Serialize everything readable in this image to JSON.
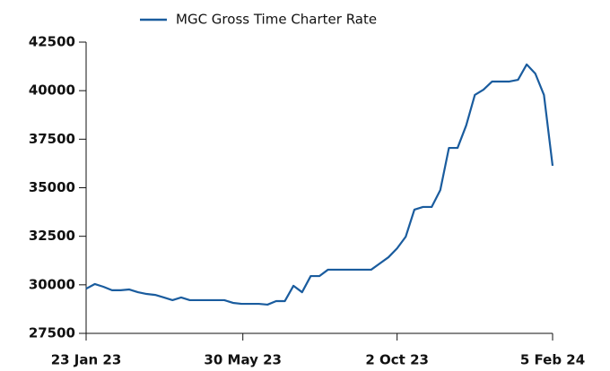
{
  "chart_data": {
    "type": "line",
    "x": [
      "2023-01-23",
      "2023-01-30",
      "2023-02-06",
      "2023-02-13",
      "2023-02-20",
      "2023-02-27",
      "2023-03-06",
      "2023-03-13",
      "2023-03-20",
      "2023-03-27",
      "2023-04-03",
      "2023-04-10",
      "2023-04-17",
      "2023-04-24",
      "2023-05-01",
      "2023-05-08",
      "2023-05-15",
      "2023-05-22",
      "2023-05-29",
      "2023-06-05",
      "2023-06-12",
      "2023-06-19",
      "2023-06-26",
      "2023-07-03",
      "2023-07-10",
      "2023-07-17",
      "2023-07-24",
      "2023-07-31",
      "2023-08-07",
      "2023-08-14",
      "2023-08-21",
      "2023-08-28",
      "2023-09-04",
      "2023-09-11",
      "2023-09-18",
      "2023-09-25",
      "2023-10-02",
      "2023-10-09",
      "2023-10-16",
      "2023-10-23",
      "2023-10-30",
      "2023-11-06",
      "2023-11-13",
      "2023-11-20",
      "2023-11-27",
      "2023-12-04",
      "2023-12-11",
      "2023-12-18",
      "2023-12-25",
      "2024-01-01",
      "2024-01-08",
      "2024-01-15",
      "2024-01-22",
      "2024-01-29",
      "2024-02-05"
    ],
    "series": [
      {
        "name": "MGC Gross Time Charter Rate",
        "color": "#1a5c9e",
        "values": [
          29800,
          30040,
          29900,
          29720,
          29720,
          29760,
          29620,
          29530,
          29480,
          29350,
          29210,
          29350,
          29210,
          29210,
          29210,
          29210,
          29210,
          29070,
          29020,
          29020,
          29020,
          28980,
          29160,
          29160,
          29950,
          29620,
          30450,
          30450,
          30780,
          30780,
          30780,
          30780,
          30780,
          30780,
          31100,
          31420,
          31880,
          32480,
          33870,
          34010,
          34010,
          34880,
          37050,
          37050,
          38210,
          39780,
          40050,
          40470,
          40470,
          40470,
          40560,
          41350,
          40880,
          39780,
          36130
        ]
      }
    ],
    "xlim": [
      "2023-01-23",
      "2024-02-05"
    ],
    "xticks": [
      {
        "value": "2023-01-23",
        "label": "23 Jan 23"
      },
      {
        "value": "2023-05-30",
        "label": "30 May 23"
      },
      {
        "value": "2023-10-02",
        "label": "2 Oct 23"
      },
      {
        "value": "2024-02-05",
        "label": "5 Feb 24"
      }
    ],
    "ylim": [
      27500,
      42500
    ],
    "yticks": [
      27500,
      30000,
      32500,
      35000,
      37500,
      40000,
      42500
    ],
    "legend": "top"
  }
}
